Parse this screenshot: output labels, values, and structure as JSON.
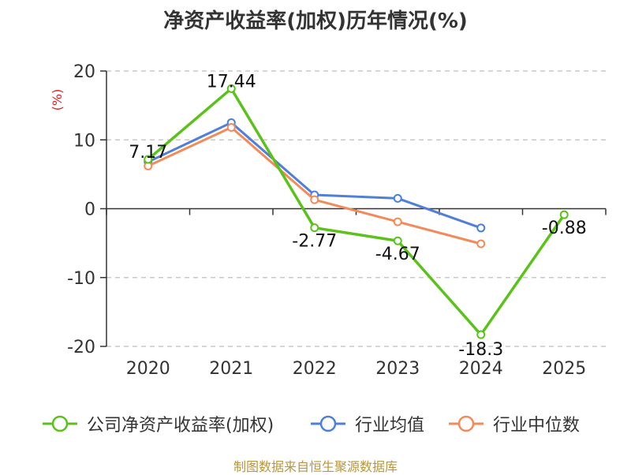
{
  "chart_data": {
    "type": "line",
    "title": "净资产收益率(加权)历年情况(%)",
    "ylabel": "(%)",
    "xlabel": "",
    "categories": [
      "2020",
      "2021",
      "2022",
      "2023",
      "2024",
      "2025"
    ],
    "ylim": [
      -20,
      20
    ],
    "yticks": [
      20,
      10,
      0,
      -10,
      -20
    ],
    "grid": true,
    "legend_position": "bottom",
    "series": [
      {
        "name": "公司净资产收益率(加权)",
        "color": "#5ac21a",
        "values": [
          7.17,
          17.44,
          -2.77,
          -4.67,
          -18.3,
          -0.88
        ],
        "labels": [
          "7.17",
          "17.44",
          "-2.77",
          "-4.67",
          "-18.3",
          "-0.88"
        ]
      },
      {
        "name": "行业均值",
        "color": "#4f7fdb",
        "values": [
          6.8,
          12.5,
          2.0,
          1.5,
          -2.8,
          null
        ]
      },
      {
        "name": "行业中位数",
        "color": "#f28a5a",
        "values": [
          6.2,
          11.8,
          1.3,
          -1.9,
          -5.1,
          null
        ]
      }
    ]
  },
  "source": "制图数据来自恒生聚源数据库"
}
